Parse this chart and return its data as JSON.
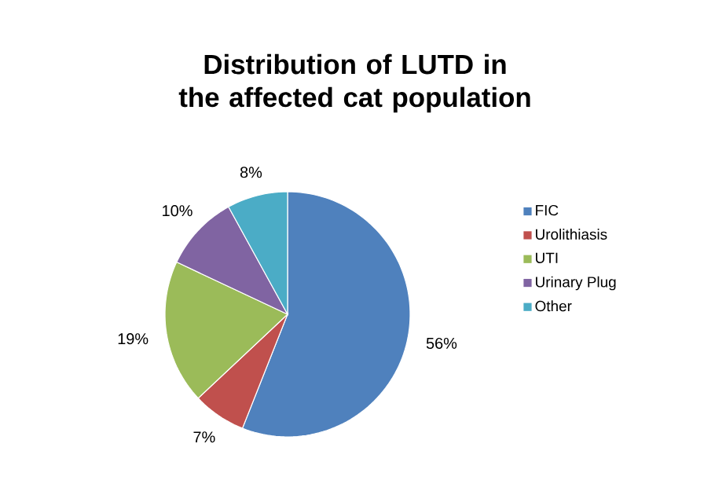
{
  "chart_data": {
    "type": "pie",
    "title": "Distribution of LUTD in the affected cat population",
    "categories": [
      "FIC",
      "Urolithiasis",
      "UTI",
      "Urinary Plug",
      "Other"
    ],
    "values": [
      56,
      7,
      19,
      10,
      8
    ],
    "colors": [
      "#4f81bd",
      "#c0504d",
      "#9bbb59",
      "#8064a2",
      "#4bacc6"
    ],
    "value_labels": [
      "56%",
      "7%",
      "19%",
      "10%",
      "8%"
    ],
    "legend": "right"
  }
}
